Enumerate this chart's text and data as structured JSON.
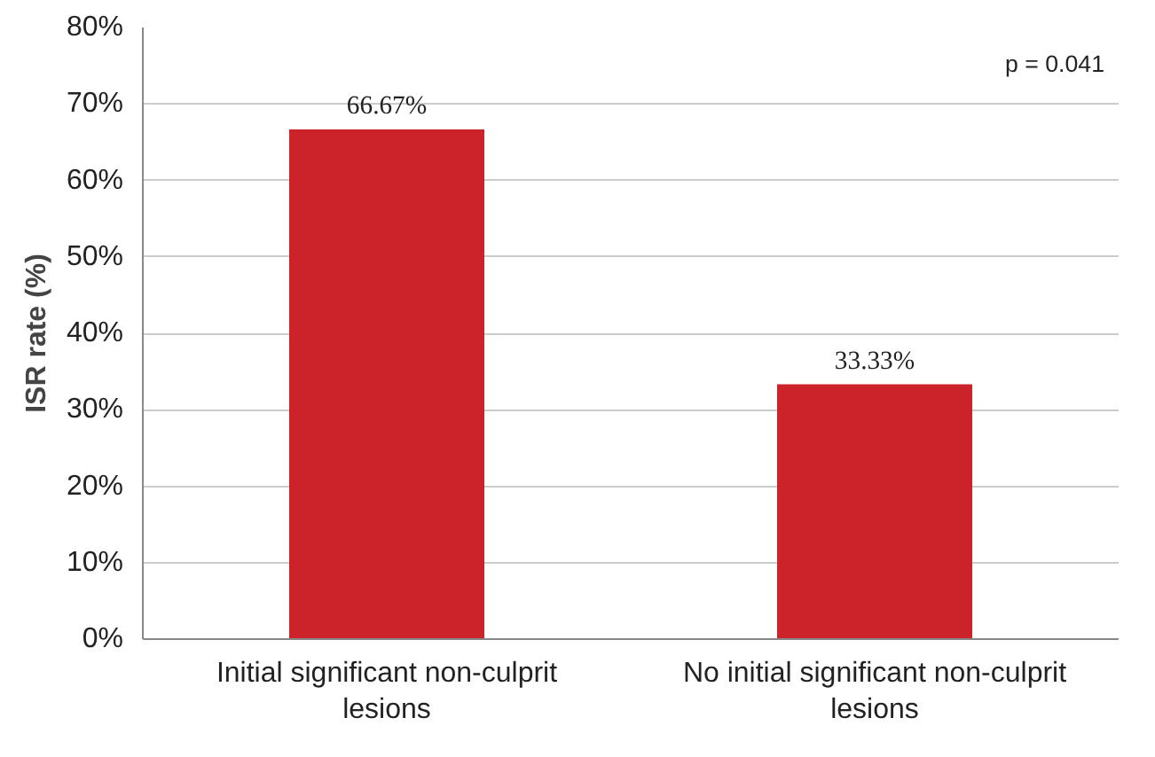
{
  "chart_data": {
    "type": "bar",
    "ylabel": "ISR rate (%)",
    "categories": [
      "Initial significant non-culprit lesions",
      "No initial significant non-culprit lesions"
    ],
    "values": [
      66.67,
      33.33
    ],
    "color": "#cc2229",
    "value_labels": [
      "66.67%",
      "33.33%"
    ],
    "ylim": [
      0,
      80
    ],
    "yticks": [
      {
        "value": 0,
        "label": "0%"
      },
      {
        "value": 10,
        "label": "10%"
      },
      {
        "value": 20,
        "label": "20%"
      },
      {
        "value": 30,
        "label": "30%"
      },
      {
        "value": 40,
        "label": "40%"
      },
      {
        "value": 50,
        "label": "50%"
      },
      {
        "value": 60,
        "label": "60%"
      },
      {
        "value": 70,
        "label": "70%"
      },
      {
        "value": 80,
        "label": "80%"
      }
    ],
    "grid": "y",
    "annotations": [
      "p = 0.041"
    ]
  }
}
